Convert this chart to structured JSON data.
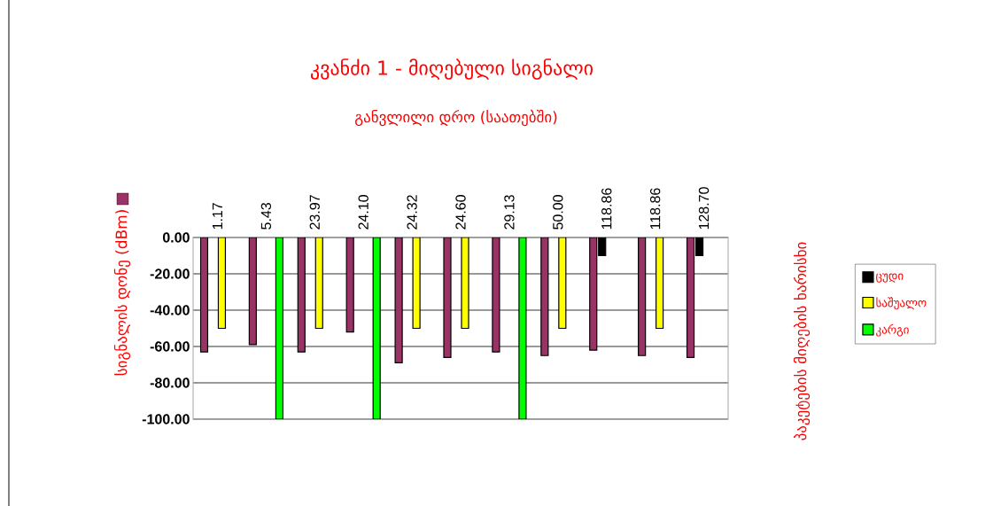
{
  "chart_data": {
    "type": "bar",
    "title": "კვანძი 1 - მიღებული სიგნალი",
    "xlabel": "განვლილი დრო (საათებში)",
    "ylabel": "სიგნალის დონე (dBm)",
    "y2label": "პაკეტების მიღების ხარისხი",
    "categories": [
      "1.17",
      "5.43",
      "23.97",
      "24.10",
      "24.32",
      "24.60",
      "29.13",
      "50.00",
      "118.86",
      "118.86",
      "128.70"
    ],
    "series": [
      {
        "color": "#993366",
        "values": [
          -63,
          -59,
          -63,
          -52,
          -69,
          -66,
          -63,
          -65,
          -62,
          -65,
          -66
        ]
      },
      {
        "name": "ცუდი",
        "color": "#000000",
        "values": [
          null,
          null,
          null,
          null,
          null,
          null,
          null,
          null,
          -10,
          null,
          -10
        ]
      },
      {
        "name": "საშუალო",
        "color": "#ffff00",
        "values": [
          -50,
          null,
          -50,
          null,
          -50,
          -50,
          null,
          -50,
          null,
          -50,
          null
        ]
      },
      {
        "name": "კარგი",
        "color": "#00ff00",
        "values": [
          null,
          -100,
          null,
          -100,
          null,
          null,
          -100,
          null,
          null,
          null,
          null
        ]
      }
    ],
    "ylim": [
      -100,
      0
    ],
    "yticks": [
      {
        "value": 0,
        "label": "0.00"
      },
      {
        "value": -20,
        "label": "-20.00"
      },
      {
        "value": -40,
        "label": "-40.00"
      },
      {
        "value": -60,
        "label": "-60.00"
      },
      {
        "value": -80,
        "label": "-80.00"
      },
      {
        "value": -100,
        "label": "-100.00"
      }
    ],
    "grid": "y",
    "legend": "right"
  }
}
